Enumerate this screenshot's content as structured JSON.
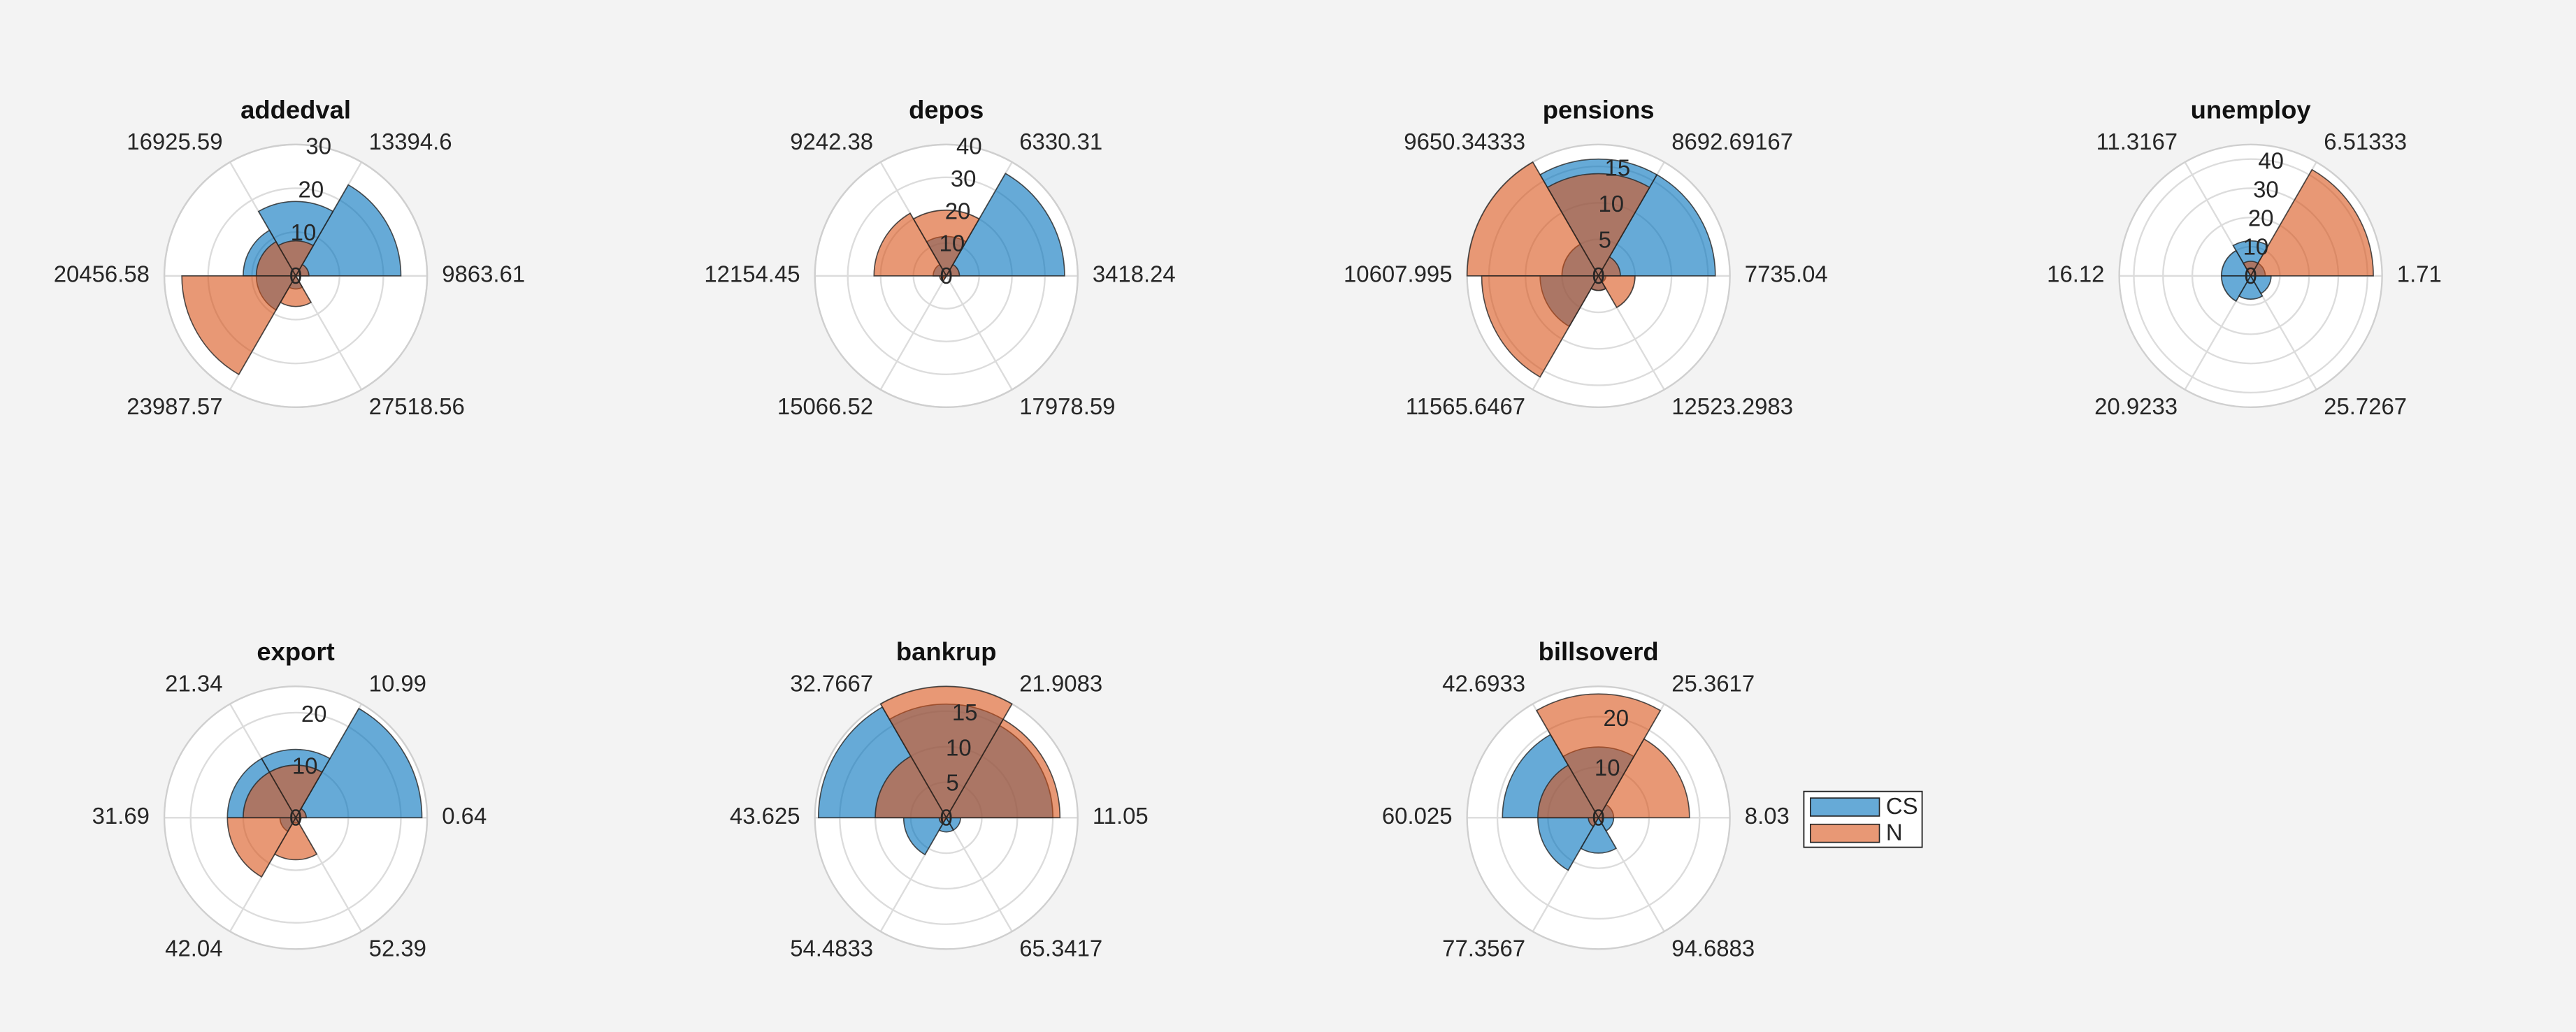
{
  "chart_data": [
    {
      "type": "polarhistogram",
      "title": "addedval",
      "thetaticks": [
        9863.61,
        13394.6,
        16925.59,
        20456.58,
        23987.57,
        27518.56
      ],
      "rlim": [
        0,
        30
      ],
      "rticks": [
        0,
        10,
        20,
        30
      ],
      "grid": true,
      "series": [
        {
          "color": "#0072bd",
          "values": [
            24,
            17,
            12,
            9,
            3,
            0
          ]
        },
        {
          "color": "#d95319",
          "values": [
            3,
            8,
            9,
            26,
            7,
            0
          ]
        }
      ]
    },
    {
      "type": "polarhistogram",
      "title": "depos",
      "thetaticks": [
        3418.24,
        6330.31,
        9242.38,
        12154.45,
        15066.52,
        17978.59
      ],
      "rlim": [
        0,
        40
      ],
      "rticks": [
        0,
        10,
        20,
        30,
        40
      ],
      "grid": true,
      "series": [
        {
          "color": "#0072bd",
          "values": [
            36,
            12,
            4,
            1,
            0,
            0
          ]
        },
        {
          "color": "#d95319",
          "values": [
            4,
            20,
            22,
            2,
            0,
            0
          ]
        }
      ]
    },
    {
      "type": "polarhistogram",
      "title": "pensions",
      "thetaticks": [
        7735.04,
        8692.69167,
        9650.34333,
        10607.995,
        11565.6467,
        12523.2983
      ],
      "rlim": [
        0,
        18
      ],
      "rticks": [
        0,
        5,
        10,
        15
      ],
      "grid": true,
      "series": [
        {
          "color": "#0072bd",
          "values": [
            16,
            16,
            5,
            8,
            2,
            1
          ]
        },
        {
          "color": "#d95319",
          "values": [
            3,
            14,
            18,
            16,
            2,
            5
          ]
        }
      ]
    },
    {
      "type": "polarhistogram",
      "title": "unemploy",
      "thetaticks": [
        1.71,
        6.51333,
        11.3167,
        16.12,
        20.9233,
        25.7267
      ],
      "rlim": [
        0,
        45
      ],
      "rticks": [
        0,
        10,
        20,
        30,
        40
      ],
      "grid": true,
      "series": [
        {
          "color": "#0072bd",
          "values": [
            5,
            12,
            10,
            10,
            8,
            7
          ]
        },
        {
          "color": "#d95319",
          "values": [
            42,
            5,
            0,
            0,
            0,
            0
          ]
        }
      ]
    },
    {
      "type": "polarhistogram",
      "title": "export",
      "thetaticks": [
        0.64,
        10.99,
        21.34,
        31.69,
        42.04,
        52.39
      ],
      "rlim": [
        0,
        25
      ],
      "rticks": [
        0,
        10,
        20
      ],
      "grid": true,
      "series": [
        {
          "color": "#0072bd",
          "values": [
            24,
            13,
            13,
            3,
            1,
            1
          ]
        },
        {
          "color": "#d95319",
          "values": [
            2,
            10,
            10,
            13,
            8,
            1
          ]
        }
      ]
    },
    {
      "type": "polarhistogram",
      "title": "bankrup",
      "thetaticks": [
        11.05,
        21.9083,
        32.7667,
        43.625,
        54.4833,
        65.3417
      ],
      "rlim": [
        0,
        18.5
      ],
      "rticks": [
        0,
        5,
        10,
        15
      ],
      "grid": true,
      "series": [
        {
          "color": "#0072bd",
          "values": [
            15,
            16,
            18,
            6,
            2,
            2
          ]
        },
        {
          "color": "#d95319",
          "values": [
            16,
            18.5,
            10,
            1,
            0,
            0
          ]
        }
      ]
    },
    {
      "type": "polarhistogram",
      "title": "billsoverd",
      "thetaticks": [
        8.03,
        25.3617,
        42.6933,
        60.025,
        77.3567,
        94.6883
      ],
      "rlim": [
        0,
        26
      ],
      "rticks": [
        0,
        10,
        20
      ],
      "grid": true,
      "legend": "east",
      "series": [
        {
          "name": "CS",
          "color": "#0072bd",
          "values": [
            3,
            14,
            19,
            12,
            7,
            3
          ]
        },
        {
          "name": "N",
          "color": "#d95319",
          "values": [
            18,
            24.5,
            12,
            2,
            0,
            1
          ]
        }
      ]
    }
  ]
}
